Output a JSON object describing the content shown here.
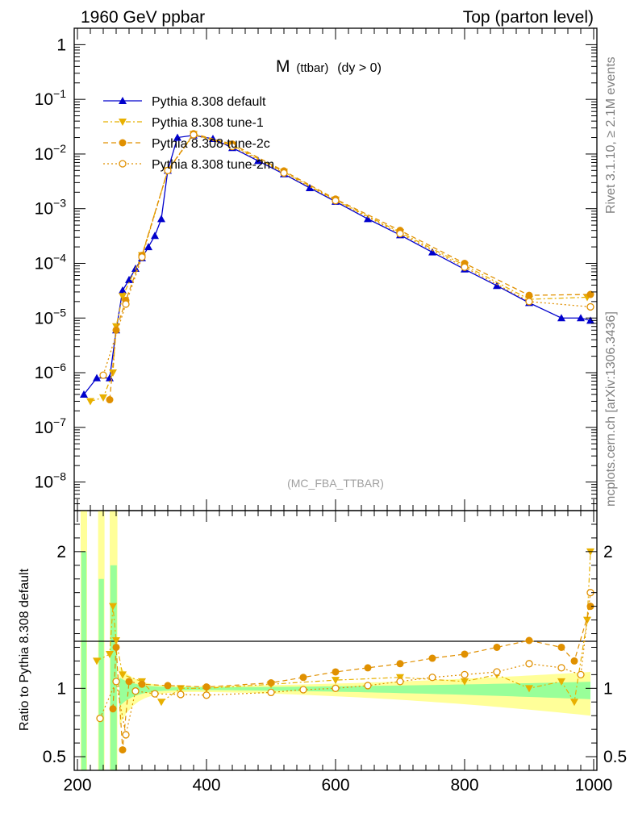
{
  "header": {
    "left": "1960 GeV ppbar",
    "right": "Top (parton level)"
  },
  "side": {
    "rivet": "Rivet 3.1.10, ≥ 2.1M events",
    "mcplots": "mcplots.cern.ch [arXiv:1306.3436]"
  },
  "title": {
    "main": "M",
    "sub": "(ttbar)",
    "cond": "(dy > 0)"
  },
  "watermark": "(MC_FBA_TTBAR)",
  "ratio_ylabel": "Ratio to Pythia 8.308 default",
  "legend": [
    {
      "label": "Pythia 8.308 default",
      "color": "#0000cc",
      "marker": "triangle-up"
    },
    {
      "label": "Pythia 8.308 tune-1",
      "color": "#e8b000",
      "marker": "triangle-down"
    },
    {
      "label": "Pythia 8.308 tune-2c",
      "color": "#e09000",
      "marker": "circle"
    },
    {
      "label": "Pythia 8.308 tune-2m",
      "color": "#e09000",
      "marker": "circle-open"
    }
  ],
  "chart_data": [
    {
      "type": "line",
      "scale": "log",
      "xlim": [
        195,
        1005
      ],
      "ylim": [
        3e-09,
        2
      ],
      "xticks": [
        200,
        400,
        600,
        800,
        1000
      ],
      "yticks": [
        {
          "value": 1,
          "label": "1"
        },
        {
          "value": 0.1,
          "base": "10",
          "exp": "−1"
        },
        {
          "value": 0.01,
          "base": "10",
          "exp": "−2"
        },
        {
          "value": 0.001,
          "base": "10",
          "exp": "−3"
        },
        {
          "value": 0.0001,
          "base": "10",
          "exp": "−4"
        },
        {
          "value": 1e-05,
          "base": "10",
          "exp": "−5"
        },
        {
          "value": 1e-06,
          "base": "10",
          "exp": "−6"
        },
        {
          "value": 1e-07,
          "base": "10",
          "exp": "−7"
        },
        {
          "value": 1e-08,
          "base": "10",
          "exp": "−8"
        }
      ],
      "series": [
        {
          "name": "Pythia 8.308 default",
          "points": [
            [
              210,
              4e-07
            ],
            [
              230,
              8e-07
            ],
            [
              250,
              8e-07
            ],
            [
              260,
              6e-06
            ],
            [
              270,
              3.2e-05
            ],
            [
              280,
              5e-05
            ],
            [
              290,
              8e-05
            ],
            [
              300,
              0.000125
            ],
            [
              310,
              0.0002
            ],
            [
              320,
              0.00032
            ],
            [
              330,
              0.00065
            ],
            [
              340,
              0.005
            ],
            [
              355,
              0.02
            ],
            [
              380,
              0.022
            ],
            [
              410,
              0.019
            ],
            [
              440,
              0.013
            ],
            [
              480,
              0.0075
            ],
            [
              520,
              0.0043
            ],
            [
              560,
              0.0024
            ],
            [
              600,
              0.00135
            ],
            [
              650,
              0.00065
            ],
            [
              700,
              0.00033
            ],
            [
              750,
              0.00016
            ],
            [
              800,
              7.8e-05
            ],
            [
              850,
              3.9e-05
            ],
            [
              900,
              1.9e-05
            ],
            [
              950,
              1e-05
            ],
            [
              980,
              1e-05
            ],
            [
              995,
              9e-06
            ]
          ]
        },
        {
          "name": "Pythia 8.308 tune-1",
          "points": [
            [
              220,
              3e-07
            ],
            [
              240,
              3.5e-07
            ],
            [
              255,
              1e-06
            ],
            [
              260,
              7e-06
            ],
            [
              270,
              2.5e-05
            ],
            [
              300,
              0.00014
            ],
            [
              340,
              0.005
            ],
            [
              380,
              0.023
            ],
            [
              440,
              0.0145
            ],
            [
              520,
              0.0047
            ],
            [
              600,
              0.00145
            ],
            [
              700,
              0.00037
            ],
            [
              800,
              9.2e-05
            ],
            [
              900,
              2.2e-05
            ],
            [
              990,
              2.4e-05
            ]
          ]
        },
        {
          "name": "Pythia 8.308 tune-2c",
          "points": [
            [
              250,
              3.2e-07
            ],
            [
              260,
              6e-06
            ],
            [
              275,
              2.1e-05
            ],
            [
              300,
              0.00014
            ],
            [
              340,
              0.005
            ],
            [
              380,
              0.0235
            ],
            [
              440,
              0.0152
            ],
            [
              520,
              0.0049
            ],
            [
              600,
              0.0015
            ],
            [
              700,
              0.0004
            ],
            [
              800,
              0.0001
            ],
            [
              900,
              2.6e-05
            ],
            [
              995,
              2.7e-05
            ]
          ]
        },
        {
          "name": "Pythia 8.308 tune-2m",
          "points": [
            [
              240,
              9e-07
            ],
            [
              275,
              1.8e-05
            ],
            [
              300,
              0.00013
            ],
            [
              340,
              0.005
            ],
            [
              380,
              0.0225
            ],
            [
              440,
              0.0138
            ],
            [
              520,
              0.0045
            ],
            [
              600,
              0.0014
            ],
            [
              700,
              0.00035
            ],
            [
              800,
              8.5e-05
            ],
            [
              900,
              2e-05
            ],
            [
              995,
              1.6e-05
            ]
          ]
        }
      ]
    },
    {
      "type": "line",
      "ylim": [
        0.4,
        2.3
      ],
      "yticks": [
        2,
        1,
        0.5
      ],
      "xticks": [
        200,
        400,
        600,
        800,
        1000
      ],
      "reference": 1,
      "series": [
        {
          "name": "Pythia 8.308 tune-1",
          "points": [
            [
              230,
              1.2
            ],
            [
              250,
              1.25
            ],
            [
              255,
              1.6
            ],
            [
              260,
              1.35
            ],
            [
              270,
              1.1
            ],
            [
              300,
              1.05
            ],
            [
              330,
              0.9
            ],
            [
              360,
              1.0
            ],
            [
              400,
              1.0
            ],
            [
              500,
              1.03
            ],
            [
              600,
              1.06
            ],
            [
              700,
              1.08
            ],
            [
              800,
              1.05
            ],
            [
              850,
              1.1
            ],
            [
              900,
              1.0
            ],
            [
              950,
              1.05
            ],
            [
              970,
              0.9
            ],
            [
              990,
              1.5
            ],
            [
              995,
              2.0
            ]
          ]
        },
        {
          "name": "Pythia 8.308 tune-2c",
          "points": [
            [
              255,
              0.85
            ],
            [
              260,
              1.3
            ],
            [
              270,
              0.55
            ],
            [
              280,
              1.05
            ],
            [
              300,
              1.03
            ],
            [
              340,
              1.02
            ],
            [
              400,
              1.01
            ],
            [
              500,
              1.04
            ],
            [
              550,
              1.08
            ],
            [
              600,
              1.12
            ],
            [
              650,
              1.15
            ],
            [
              700,
              1.18
            ],
            [
              750,
              1.22
            ],
            [
              800,
              1.25
            ],
            [
              850,
              1.3
            ],
            [
              900,
              1.35
            ],
            [
              950,
              1.3
            ],
            [
              970,
              1.2
            ],
            [
              995,
              1.6
            ]
          ]
        },
        {
          "name": "Pythia 8.308 tune-2m",
          "points": [
            [
              235,
              0.78
            ],
            [
              260,
              1.05
            ],
            [
              275,
              0.66
            ],
            [
              290,
              0.98
            ],
            [
              320,
              0.96
            ],
            [
              360,
              0.955
            ],
            [
              400,
              0.95
            ],
            [
              500,
              0.97
            ],
            [
              550,
              0.99
            ],
            [
              600,
              1.0
            ],
            [
              650,
              1.02
            ],
            [
              700,
              1.05
            ],
            [
              750,
              1.08
            ],
            [
              800,
              1.1
            ],
            [
              850,
              1.12
            ],
            [
              900,
              1.18
            ],
            [
              950,
              1.15
            ],
            [
              980,
              1.1
            ],
            [
              995,
              1.7
            ]
          ]
        }
      ]
    }
  ]
}
